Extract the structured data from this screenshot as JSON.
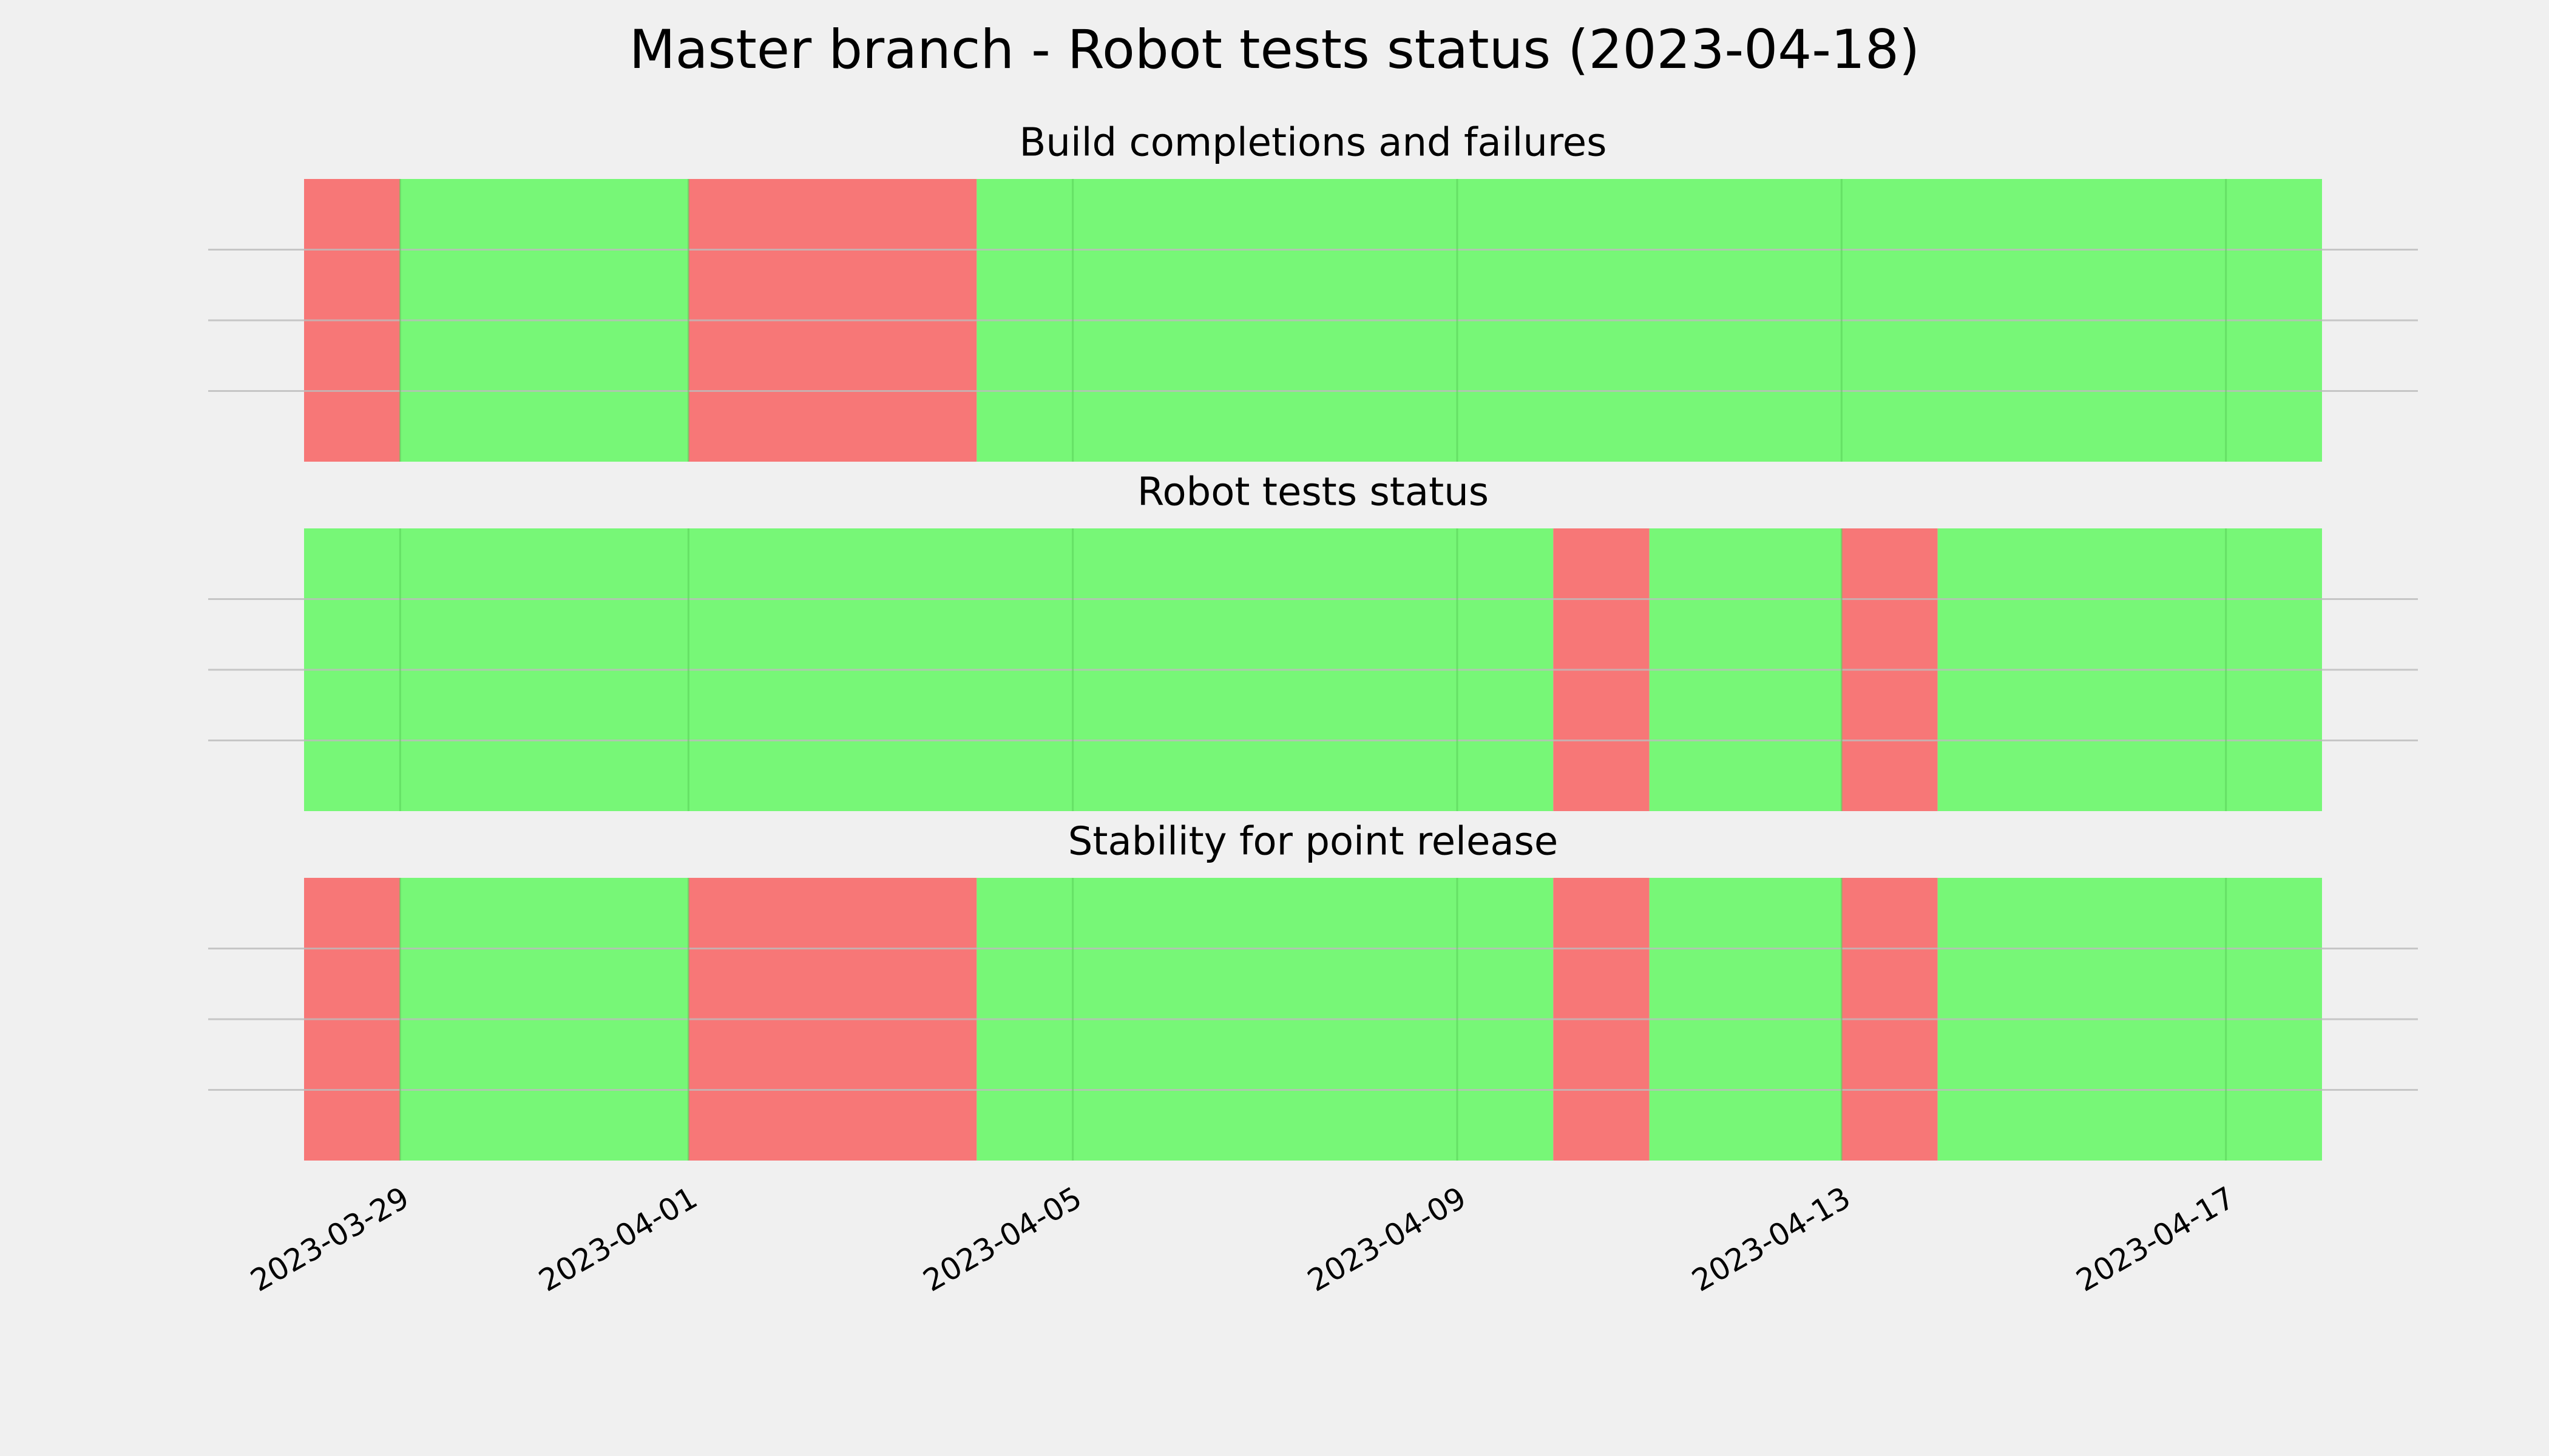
{
  "title": "Master branch - Robot tests status (2023-04-18)",
  "chart_data": [
    {
      "type": "timeline",
      "title": "Build completions and failures",
      "xlim": [
        "2023-03-28",
        "2023-04-18"
      ],
      "ylim": [
        0,
        1
      ],
      "yticks": [
        0.25,
        0.5,
        0.75
      ],
      "grid": true,
      "xticks": [
        "2023-03-29",
        "2023-04-01",
        "2023-04-05",
        "2023-04-09",
        "2023-04-13",
        "2023-04-17"
      ],
      "segments": [
        {
          "start": "2023-03-28",
          "end": "2023-03-29",
          "color": "#f77777"
        },
        {
          "start": "2023-03-29",
          "end": "2023-04-01",
          "color": "#77f777"
        },
        {
          "start": "2023-04-01",
          "end": "2023-04-04",
          "color": "#f77777"
        },
        {
          "start": "2023-04-04",
          "end": "2023-04-18",
          "color": "#77f777"
        }
      ]
    },
    {
      "type": "timeline",
      "title": "Robot tests status",
      "xlim": [
        "2023-03-28",
        "2023-04-18"
      ],
      "ylim": [
        0,
        1
      ],
      "yticks": [
        0.25,
        0.5,
        0.75
      ],
      "grid": true,
      "xticks": [
        "2023-03-29",
        "2023-04-01",
        "2023-04-05",
        "2023-04-09",
        "2023-04-13",
        "2023-04-17"
      ],
      "segments": [
        {
          "start": "2023-03-28",
          "end": "2023-04-10",
          "color": "#77f777"
        },
        {
          "start": "2023-04-10",
          "end": "2023-04-11",
          "color": "#f77777"
        },
        {
          "start": "2023-04-11",
          "end": "2023-04-13",
          "color": "#77f777"
        },
        {
          "start": "2023-04-13",
          "end": "2023-04-14",
          "color": "#f77777"
        },
        {
          "start": "2023-04-14",
          "end": "2023-04-18",
          "color": "#77f777"
        }
      ]
    },
    {
      "type": "timeline",
      "title": "Stability for point release",
      "xlim": [
        "2023-03-28",
        "2023-04-18"
      ],
      "ylim": [
        0,
        1
      ],
      "yticks": [
        0.25,
        0.5,
        0.75
      ],
      "grid": true,
      "xticks": [
        "2023-03-29",
        "2023-04-01",
        "2023-04-05",
        "2023-04-09",
        "2023-04-13",
        "2023-04-17"
      ],
      "segments": [
        {
          "start": "2023-03-28",
          "end": "2023-03-29",
          "color": "#f77777"
        },
        {
          "start": "2023-03-29",
          "end": "2023-04-01",
          "color": "#77f777"
        },
        {
          "start": "2023-04-01",
          "end": "2023-04-04",
          "color": "#f77777"
        },
        {
          "start": "2023-04-04",
          "end": "2023-04-10",
          "color": "#77f777"
        },
        {
          "start": "2023-04-10",
          "end": "2023-04-11",
          "color": "#f77777"
        },
        {
          "start": "2023-04-11",
          "end": "2023-04-13",
          "color": "#77f777"
        },
        {
          "start": "2023-04-13",
          "end": "2023-04-14",
          "color": "#f77777"
        },
        {
          "start": "2023-04-14",
          "end": "2023-04-18",
          "color": "#77f777"
        }
      ]
    }
  ]
}
